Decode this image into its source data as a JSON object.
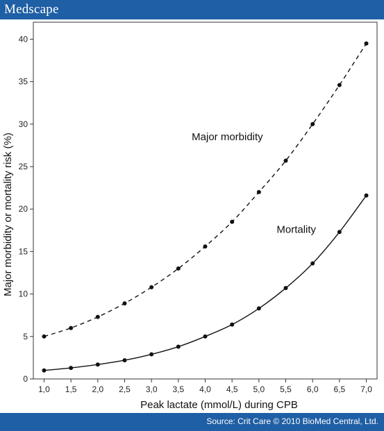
{
  "header": {
    "brand": "Medscape"
  },
  "footer": {
    "source": "Source: Crit Care © 2010 BioMed Central, Ltd."
  },
  "colors": {
    "brand_blue": "#1f5fa5",
    "series": "#111111"
  },
  "chart_data": {
    "type": "line",
    "xlabel": "Peak lactate (mmol/L) during CPB",
    "ylabel": "Major morbidity or mortality risk (%)",
    "x": [
      1.0,
      1.5,
      2.0,
      2.5,
      3.0,
      3.5,
      4.0,
      4.5,
      5.0,
      5.5,
      6.0,
      6.5,
      7.0
    ],
    "x_tick_labels": [
      "1,0",
      "1,5",
      "2,0",
      "2,5",
      "3,0",
      "3,5",
      "4,0",
      "4,5",
      "5,0",
      "5,5",
      "6,0",
      "6,5",
      "7,0"
    ],
    "y_ticks": [
      0,
      5,
      10,
      15,
      20,
      25,
      30,
      35,
      40
    ],
    "y_tick_labels": [
      "0",
      "5",
      "10",
      "15",
      "20",
      "25",
      "30",
      "35",
      "40"
    ],
    "xlim": [
      0.8,
      7.2
    ],
    "ylim": [
      0,
      42
    ],
    "grid": false,
    "series": [
      {
        "name": "Major morbidity",
        "line_style": "dashed",
        "values": [
          5.0,
          6.0,
          7.3,
          8.9,
          10.8,
          13.0,
          15.6,
          18.5,
          22.0,
          25.7,
          30.0,
          34.6,
          39.5
        ]
      },
      {
        "name": "Mortality",
        "line_style": "solid",
        "values": [
          1.0,
          1.3,
          1.7,
          2.2,
          2.9,
          3.8,
          5.0,
          6.4,
          8.3,
          10.7,
          13.6,
          17.3,
          21.6
        ]
      }
    ],
    "annotations": [
      {
        "text": "Major morbidity",
        "series": 0
      },
      {
        "text": "Mortality",
        "series": 1
      }
    ]
  }
}
